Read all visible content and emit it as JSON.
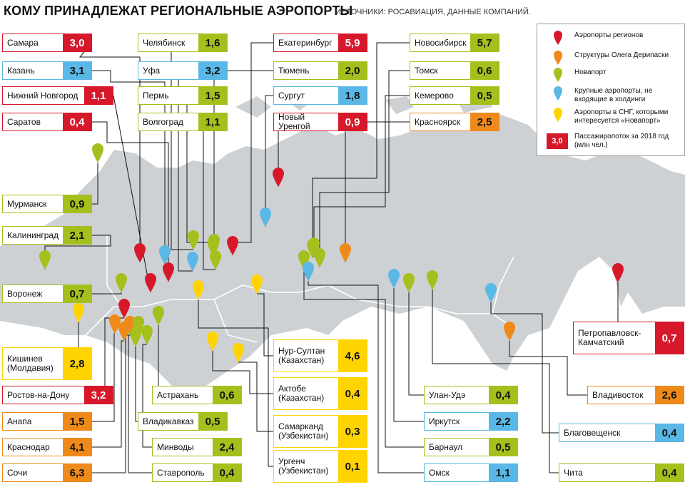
{
  "title": "КОМУ ПРИНАДЛЕЖАТ РЕГИОНАЛЬНЫЕ АЭРОПОРТЫ",
  "sources": "ИСТОЧНИКИ: РОСАВИАЦИЯ, ДАННЫЕ КОМПАНИЙ.",
  "colors": {
    "red": "#d7182a",
    "orange": "#ef8a1a",
    "green": "#a5bf1c",
    "blue": "#5ab8e6",
    "yellow": "#ffd400",
    "land": "#cdd1d4"
  },
  "legend": {
    "regions": "Аэропорты регионов",
    "deripaska": "Структуры Олега Дерипаски",
    "novaport": "Новапорт",
    "large": "Крупные аэропорты, не входящие в холдинги",
    "cis": "Аэропорты в СНГ, которыми интересуется «Новапорт»",
    "sample_value": "3,0",
    "traffic": "Пассажиропоток за 2018 год (млн чел.)"
  },
  "airports": [
    {
      "name": "Самара",
      "value": "3,0",
      "color": "red"
    },
    {
      "name": "Казань",
      "value": "3,1",
      "color": "blue"
    },
    {
      "name": "Нижний Новгород",
      "value": "1,1",
      "color": "red"
    },
    {
      "name": "Саратов",
      "value": "0,4",
      "color": "red"
    },
    {
      "name": "Мурманск",
      "value": "0,9",
      "color": "green"
    },
    {
      "name": "Калининград",
      "value": "2,1",
      "color": "green"
    },
    {
      "name": "Воронеж",
      "value": "0,7",
      "color": "green"
    },
    {
      "name": "Кишинев (Молдавия)",
      "value": "2,8",
      "color": "yellow"
    },
    {
      "name": "Ростов-на-Дону",
      "value": "3,2",
      "color": "red"
    },
    {
      "name": "Анапа",
      "value": "1,5",
      "color": "orange"
    },
    {
      "name": "Краснодар",
      "value": "4,1",
      "color": "orange"
    },
    {
      "name": "Сочи",
      "value": "6,3",
      "color": "orange"
    },
    {
      "name": "Челябинск",
      "value": "1,6",
      "color": "green"
    },
    {
      "name": "Уфа",
      "value": "3,2",
      "color": "blue"
    },
    {
      "name": "Пермь",
      "value": "1,5",
      "color": "green"
    },
    {
      "name": "Волгоград",
      "value": "1,1",
      "color": "green"
    },
    {
      "name": "Астрахань",
      "value": "0,6",
      "color": "green"
    },
    {
      "name": "Владикавказ",
      "value": "0,5",
      "color": "green"
    },
    {
      "name": "Минводы",
      "value": "2,4",
      "color": "green"
    },
    {
      "name": "Ставрополь",
      "value": "0,4",
      "color": "green"
    },
    {
      "name": "Екатеринбург",
      "value": "5,9",
      "color": "red"
    },
    {
      "name": "Тюмень",
      "value": "2,0",
      "color": "green"
    },
    {
      "name": "Сургут",
      "value": "1,8",
      "color": "blue"
    },
    {
      "name": "Новый Уренгой",
      "value": "0,9",
      "color": "red"
    },
    {
      "name": "Нур-Султан (Казахстан)",
      "value": "4,6",
      "color": "yellow"
    },
    {
      "name": "Актобе (Казахстан)",
      "value": "0,4",
      "color": "yellow"
    },
    {
      "name": "Самарканд (Узбекистан)",
      "value": "0,3",
      "color": "yellow"
    },
    {
      "name": "Ургенч (Узбекистан)",
      "value": "0,1",
      "color": "yellow"
    },
    {
      "name": "Новосибирск",
      "value": "5,7",
      "color": "green"
    },
    {
      "name": "Томск",
      "value": "0,6",
      "color": "green"
    },
    {
      "name": "Кемерово",
      "value": "0,5",
      "color": "green"
    },
    {
      "name": "Красноярск",
      "value": "2,5",
      "color": "orange"
    },
    {
      "name": "Улан-Удэ",
      "value": "0,4",
      "color": "green"
    },
    {
      "name": "Иркутск",
      "value": "2,2",
      "color": "blue"
    },
    {
      "name": "Барнаул",
      "value": "0,5",
      "color": "green"
    },
    {
      "name": "Омск",
      "value": "1,1",
      "color": "blue"
    },
    {
      "name": "Петропавловск-Камчатский",
      "value": "0,7",
      "color": "red"
    },
    {
      "name": "Владивосток",
      "value": "2,6",
      "color": "orange"
    },
    {
      "name": "Благовещенск",
      "value": "0,4",
      "color": "blue"
    },
    {
      "name": "Чита",
      "value": "0,4",
      "color": "green"
    }
  ]
}
